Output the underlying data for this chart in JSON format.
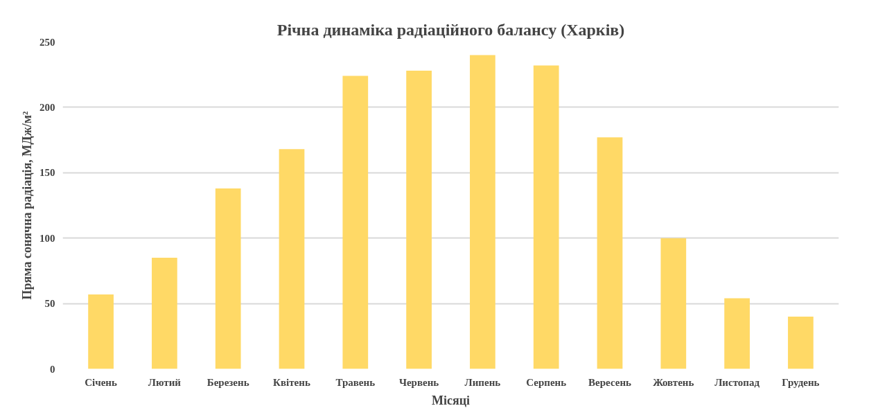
{
  "chart_data": {
    "type": "bar",
    "title": "Річна динаміка радіаційного балансу (Харків)",
    "xlabel": "Місяці",
    "ylabel": "Пряма сонячна радіація, МДж/м²",
    "categories": [
      "Січень",
      "Лютий",
      "Березень",
      "Квітень",
      "Травень",
      "Червень",
      "Липень",
      "Серпень",
      "Вересень",
      "Жовтень",
      "Листопад",
      "Грудень"
    ],
    "values": [
      57,
      85,
      138,
      168,
      224,
      228,
      240,
      232,
      177,
      100,
      54,
      40
    ],
    "color": "#ffd966",
    "ylim": [
      0,
      250
    ],
    "yticks": [
      0,
      50,
      100,
      150,
      200,
      250
    ],
    "grid": "y"
  }
}
